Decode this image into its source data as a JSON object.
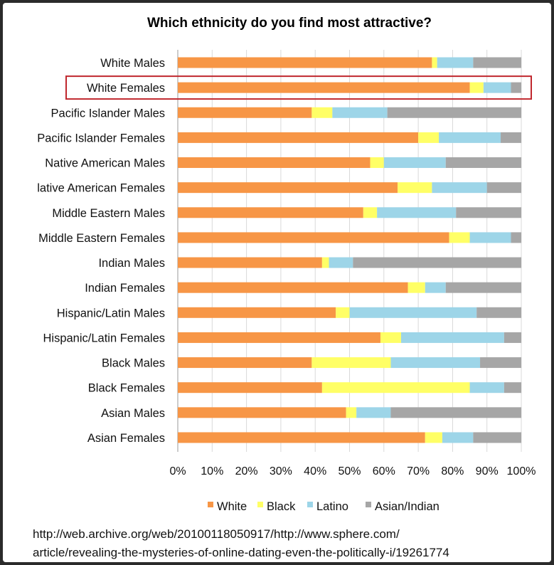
{
  "chart_data": {
    "type": "bar",
    "orientation": "horizontal",
    "stacked": "percent",
    "title": "Which ethnicity do you find most attractive?",
    "categories": [
      "White Males",
      "White Females",
      "Pacific Islander Males",
      "Pacific Islander Females",
      "Native American Males",
      "lative American Females",
      "Middle Eastern Males",
      "Middle Eastern Females",
      "Indian Males",
      "Indian Females",
      "Hispanic/Latin Males",
      "Hispanic/Latin Females",
      "Black Males",
      "Black Females",
      "Asian Males",
      "Asian Females"
    ],
    "series": [
      {
        "name": "White",
        "color": "#F79646",
        "values": [
          74,
          85,
          39,
          70,
          56,
          64,
          54,
          79,
          42,
          67,
          46,
          59,
          39,
          42,
          49,
          72
        ]
      },
      {
        "name": "Black",
        "color": "#FFFF66",
        "values": [
          1.5,
          4,
          6,
          6,
          4,
          10,
          4,
          6,
          2,
          5,
          4,
          6,
          23,
          43,
          3,
          5
        ]
      },
      {
        "name": "Latino",
        "color": "#9DD5E8",
        "values": [
          10.5,
          8,
          16,
          18,
          18,
          16,
          23,
          12,
          7,
          6,
          37,
          30,
          26,
          10,
          10,
          9
        ]
      },
      {
        "name": "Asian/Indian",
        "color": "#A6A6A6",
        "values": [
          14,
          3,
          39,
          6,
          22,
          10,
          19,
          3,
          49,
          22,
          13,
          5,
          12,
          5,
          38,
          14
        ]
      }
    ],
    "xlim": [
      0,
      100
    ],
    "x_ticks": [
      "0%",
      "10%",
      "20%",
      "30%",
      "40%",
      "50%",
      "60%",
      "70%",
      "80%",
      "90%",
      "100%"
    ],
    "grid": "vertical",
    "legend_position": "bottom",
    "highlighted_category": "White Females",
    "highlight_color": "#C0272D"
  },
  "source": {
    "line1": "http://web.archive.org/web/20100118050917/http://www.sphere.com/",
    "line2": "article/revealing-the-mysteries-of-online-dating-even-the-politically-i/19261774"
  }
}
